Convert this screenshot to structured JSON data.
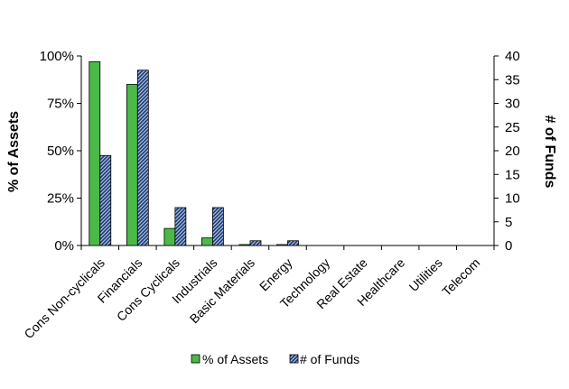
{
  "chart_data": {
    "type": "bar",
    "categories": [
      "Cons Non-cyclicals",
      "Financials",
      "Cons Cyclicals",
      "Industrials",
      "Basic Materials",
      "Energy",
      "Technology",
      "Real Estate",
      "Healthcare",
      "Utilities",
      "Telecom"
    ],
    "series": [
      {
        "name": "% of Assets",
        "axis": "left",
        "color": "#4cb848",
        "values": [
          97,
          85,
          9,
          4,
          0.5,
          0.5,
          0,
          0,
          0,
          0,
          0
        ]
      },
      {
        "name": "# of Funds",
        "axis": "right",
        "color": "#1f3a6e",
        "pattern": "diagonal-hatch",
        "values": [
          19,
          37,
          8,
          8,
          1,
          1,
          0,
          0,
          0,
          0,
          0
        ]
      }
    ],
    "ylabel": "% of Assets",
    "y2label": "# of Funds",
    "ylim": [
      0,
      100
    ],
    "y2lim": [
      0,
      40
    ],
    "yticks": [
      "0%",
      "25%",
      "50%",
      "75%",
      "100%"
    ],
    "yticks_values": [
      0,
      25,
      50,
      75,
      100
    ],
    "y2ticks": [
      0,
      5,
      10,
      15,
      20,
      25,
      30,
      35,
      40
    ],
    "legend_position": "bottom",
    "grid": false
  }
}
